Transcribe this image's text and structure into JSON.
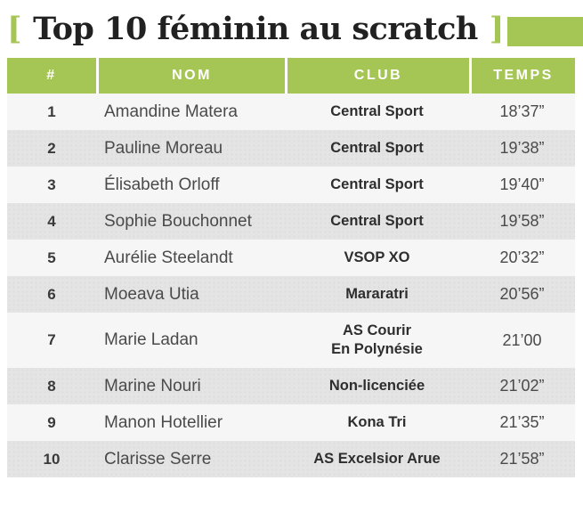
{
  "title": {
    "bracket_left": "[",
    "text": "Top 10 féminin au scratch",
    "bracket_right": "]"
  },
  "colors": {
    "accent_green": "#a5c655",
    "row_light": "#f6f6f6",
    "row_dark": "#e4e4e4",
    "header_text": "#ffffff",
    "title_text": "#212121"
  },
  "table": {
    "columns": [
      "#",
      "NOM",
      "CLUB",
      "TEMPS"
    ],
    "rows": [
      {
        "rank": "1",
        "name": "Amandine Matera",
        "club": "Central Sport",
        "time": "18’37”"
      },
      {
        "rank": "2",
        "name": "Pauline Moreau",
        "club": "Central Sport",
        "time": "19’38”"
      },
      {
        "rank": "3",
        "name": "Élisabeth Orloff",
        "club": "Central Sport",
        "time": "19’40”"
      },
      {
        "rank": "4",
        "name": "Sophie Bouchonnet",
        "club": "Central Sport",
        "time": "19’58”"
      },
      {
        "rank": "5",
        "name": "Aurélie Steelandt",
        "club": "VSOP XO",
        "time": "20’32”"
      },
      {
        "rank": "6",
        "name": "Moeava Utia",
        "club": "Mararatri",
        "time": "20’56”"
      },
      {
        "rank": "7",
        "name": "Marie Ladan",
        "club": "AS Courir\nEn Polynésie",
        "time": "21’00"
      },
      {
        "rank": "8",
        "name": "Marine Nouri",
        "club": "Non-licenciée",
        "time": "21’02”"
      },
      {
        "rank": "9",
        "name": "Manon Hotellier",
        "club": "Kona Tri",
        "time": "21’35”"
      },
      {
        "rank": "10",
        "name": "Clarisse Serre",
        "club": "AS Excelsior Arue",
        "time": "21’58”"
      }
    ]
  }
}
